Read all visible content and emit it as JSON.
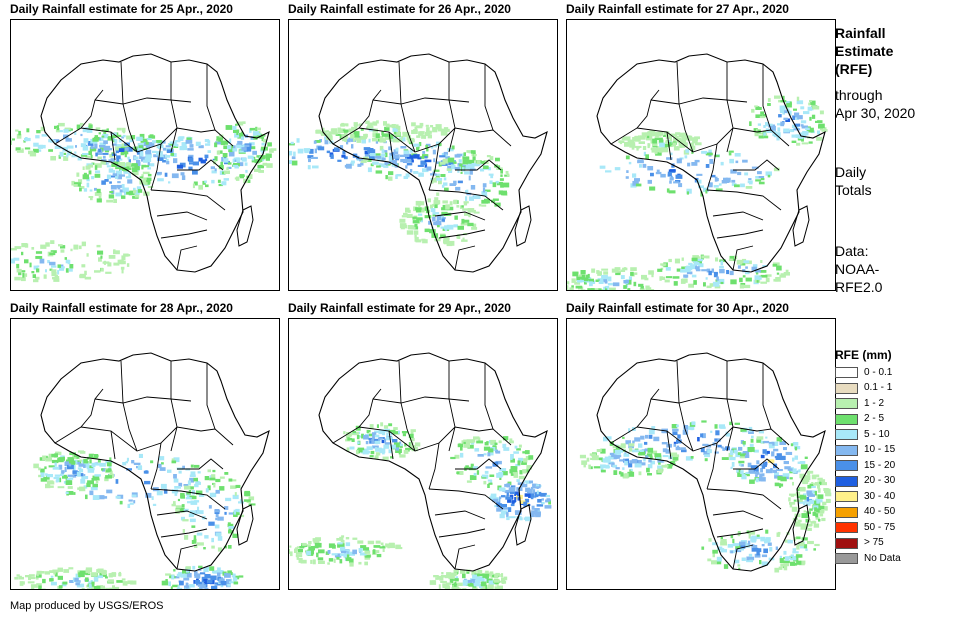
{
  "panels": [
    {
      "title": "Daily Rainfall estimate for 25 Apr., 2020"
    },
    {
      "title": "Daily Rainfall estimate for 26 Apr., 2020"
    },
    {
      "title": "Daily Rainfall estimate for 27 Apr., 2020"
    },
    {
      "title": "Daily Rainfall estimate for 28 Apr., 2020"
    },
    {
      "title": "Daily Rainfall estimate for 29 Apr., 2020"
    },
    {
      "title": "Daily Rainfall estimate for 30 Apr., 2020"
    }
  ],
  "sidebar": {
    "title_line1": "Rainfall",
    "title_line2": "Estimate",
    "title_line3": "(RFE)",
    "through_line1": "through",
    "through_line2": "Apr 30, 2020",
    "daily_line1": "Daily",
    "daily_line2": "Totals",
    "data_line1": "Data:",
    "data_line2": "NOAA-",
    "data_line3": "RFE2.0"
  },
  "legend": {
    "title": "RFE (mm)",
    "items": [
      {
        "label": "0 - 0.1",
        "color": "#ffffff"
      },
      {
        "label": "0.1 - 1",
        "color": "#e8dcc0"
      },
      {
        "label": "1 - 2",
        "color": "#b8f0b0"
      },
      {
        "label": "2 - 5",
        "color": "#6ee06e"
      },
      {
        "label": "5 - 10",
        "color": "#a8e8f8"
      },
      {
        "label": "10 - 15",
        "color": "#84b8f0"
      },
      {
        "label": "15 - 20",
        "color": "#4a90e8"
      },
      {
        "label": "20 - 30",
        "color": "#1f5fe0"
      },
      {
        "label": "30 - 40",
        "color": "#fff08a"
      },
      {
        "label": "40 - 50",
        "color": "#f5a000"
      },
      {
        "label": "50 - 75",
        "color": "#ff3300"
      },
      {
        "label": "> 75",
        "color": "#a01010"
      },
      {
        "label": "No Data",
        "color": "#999999"
      }
    ]
  },
  "credit": "Map produced by USGS/EROS"
}
